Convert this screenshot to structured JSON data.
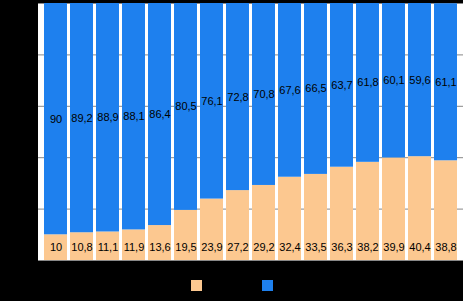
{
  "chart_data": {
    "type": "bar",
    "stacked": true,
    "categories": [
      null,
      null,
      null,
      null,
      null,
      null,
      null,
      null,
      null,
      null,
      null,
      null,
      null,
      null,
      null,
      null
    ],
    "series": [
      {
        "color": "#fcc890",
        "values": [
          10,
          10.8,
          11.1,
          11.9,
          13.6,
          19.5,
          23.9,
          27.2,
          29.2,
          32.4,
          33.5,
          36.3,
          38.2,
          39.9,
          40.4,
          38.8
        ],
        "value_labels": [
          "10",
          "10,8",
          "11,1",
          "11,9",
          "13,6",
          "19,5",
          "23,9",
          "27,2",
          "29,2",
          "32,4",
          "33,5",
          "36,3",
          "38,2",
          "39,9",
          "40,4",
          "38,8"
        ]
      },
      {
        "color": "#1e80ee",
        "values": [
          90,
          89.2,
          88.9,
          88.1,
          86.4,
          80.5,
          76.1,
          72.8,
          70.8,
          67.6,
          66.5,
          63.7,
          61.8,
          60.1,
          59.6,
          61.1
        ],
        "value_labels": [
          "90",
          "89,2",
          "88,9",
          "88,1",
          "86,4",
          "80,5",
          "76,1",
          "72,8",
          "70,8",
          "67,6",
          "66,5",
          "63,7",
          "61,8",
          "60,1",
          "59,6",
          "61,1"
        ]
      }
    ],
    "ylim": [
      0,
      100
    ],
    "yticks": [
      0,
      20,
      40,
      60,
      80,
      100
    ],
    "grid": true,
    "data_labels": true,
    "tick_labels": false,
    "legend": "bottom"
  }
}
